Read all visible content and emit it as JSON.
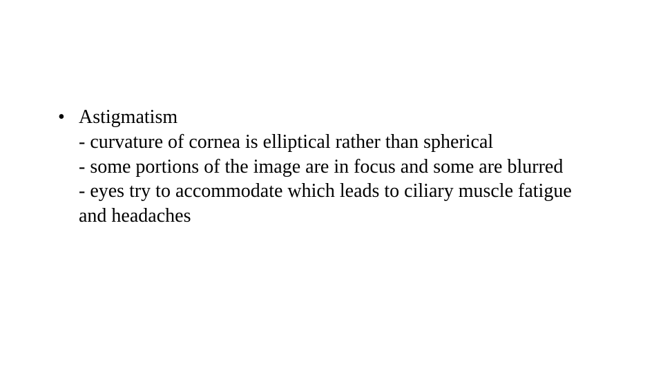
{
  "slide": {
    "background_color": "#ffffff",
    "text_color": "#000000",
    "font_family": "Times New Roman",
    "fontsize_pt": 21,
    "bullet": {
      "marker": "•",
      "title": "Astigmatism",
      "lines": [
        "- curvature of cornea is elliptical rather than spherical",
        "- some portions of the image are in focus and some are blurred",
        "- eyes try to accommodate which leads to ciliary muscle fatigue and headaches"
      ]
    }
  }
}
